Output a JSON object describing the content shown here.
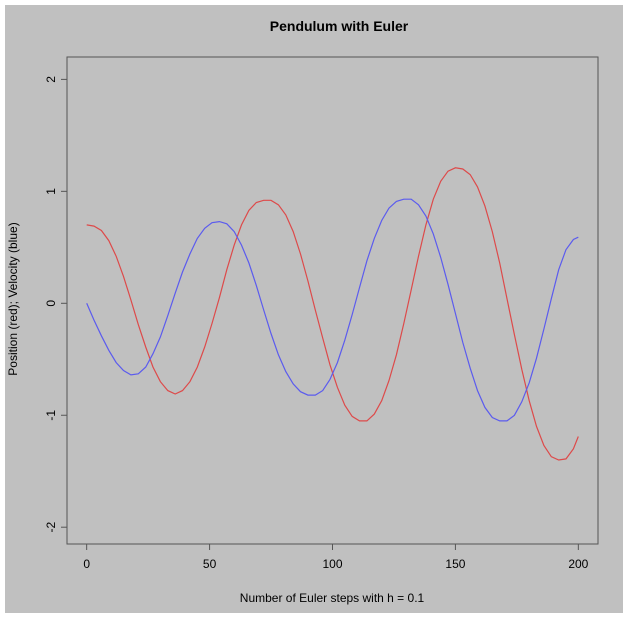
{
  "chart_data": {
    "type": "line",
    "title": "Pendulum with Euler",
    "xlabel": "Number of Euler steps with h = 0.1",
    "ylabel": "Position (red); Velocity (blue)",
    "xlim": [
      -8,
      208
    ],
    "ylim": [
      -2.15,
      2.2
    ],
    "x_ticks": [
      0,
      50,
      100,
      150,
      200
    ],
    "x_tick_labels": [
      "0",
      "50",
      "100",
      "150",
      "200"
    ],
    "y_ticks": [
      -2,
      -1,
      0,
      1,
      2
    ],
    "y_tick_labels": [
      "-2",
      "-1",
      "0",
      "1",
      "2"
    ],
    "grid": false,
    "legend": "none",
    "background_color": "#c0c0c0",
    "series": [
      {
        "color": "#dd4a4a",
        "points": [
          [
            0,
            0.7
          ],
          [
            3,
            0.69
          ],
          [
            6,
            0.65
          ],
          [
            9,
            0.56
          ],
          [
            12,
            0.42
          ],
          [
            15,
            0.24
          ],
          [
            18,
            0.03
          ],
          [
            21,
            -0.19
          ],
          [
            24,
            -0.39
          ],
          [
            27,
            -0.57
          ],
          [
            30,
            -0.7
          ],
          [
            33,
            -0.78
          ],
          [
            36,
            -0.81
          ],
          [
            39,
            -0.78
          ],
          [
            42,
            -0.7
          ],
          [
            45,
            -0.57
          ],
          [
            48,
            -0.39
          ],
          [
            51,
            -0.18
          ],
          [
            54,
            0.05
          ],
          [
            57,
            0.3
          ],
          [
            60,
            0.52
          ],
          [
            63,
            0.7
          ],
          [
            66,
            0.83
          ],
          [
            69,
            0.9
          ],
          [
            72,
            0.92
          ],
          [
            75,
            0.92
          ],
          [
            78,
            0.88
          ],
          [
            81,
            0.79
          ],
          [
            84,
            0.64
          ],
          [
            87,
            0.44
          ],
          [
            90,
            0.2
          ],
          [
            93,
            -0.06
          ],
          [
            96,
            -0.31
          ],
          [
            99,
            -0.55
          ],
          [
            102,
            -0.75
          ],
          [
            105,
            -0.91
          ],
          [
            108,
            -1.01
          ],
          [
            111,
            -1.05
          ],
          [
            114,
            -1.05
          ],
          [
            117,
            -0.99
          ],
          [
            120,
            -0.87
          ],
          [
            123,
            -0.69
          ],
          [
            126,
            -0.46
          ],
          [
            129,
            -0.18
          ],
          [
            132,
            0.12
          ],
          [
            135,
            0.42
          ],
          [
            138,
            0.7
          ],
          [
            141,
            0.93
          ],
          [
            144,
            1.09
          ],
          [
            147,
            1.18
          ],
          [
            150,
            1.21
          ],
          [
            153,
            1.2
          ],
          [
            156,
            1.15
          ],
          [
            159,
            1.04
          ],
          [
            162,
            0.87
          ],
          [
            165,
            0.64
          ],
          [
            168,
            0.36
          ],
          [
            171,
            0.04
          ],
          [
            174,
            -0.28
          ],
          [
            177,
            -0.59
          ],
          [
            180,
            -0.87
          ],
          [
            183,
            -1.1
          ],
          [
            186,
            -1.27
          ],
          [
            189,
            -1.37
          ],
          [
            192,
            -1.4
          ],
          [
            195,
            -1.39
          ],
          [
            198,
            -1.3
          ],
          [
            200,
            -1.19
          ]
        ]
      },
      {
        "color": "#5b5bee",
        "points": [
          [
            0,
            0.0
          ],
          [
            3,
            -0.15
          ],
          [
            6,
            -0.29
          ],
          [
            9,
            -0.42
          ],
          [
            12,
            -0.53
          ],
          [
            15,
            -0.6
          ],
          [
            18,
            -0.64
          ],
          [
            21,
            -0.63
          ],
          [
            24,
            -0.57
          ],
          [
            27,
            -0.45
          ],
          [
            30,
            -0.3
          ],
          [
            33,
            -0.11
          ],
          [
            36,
            0.09
          ],
          [
            39,
            0.28
          ],
          [
            42,
            0.44
          ],
          [
            45,
            0.58
          ],
          [
            48,
            0.67
          ],
          [
            51,
            0.72
          ],
          [
            54,
            0.73
          ],
          [
            57,
            0.71
          ],
          [
            60,
            0.64
          ],
          [
            63,
            0.52
          ],
          [
            66,
            0.36
          ],
          [
            69,
            0.16
          ],
          [
            72,
            -0.06
          ],
          [
            75,
            -0.27
          ],
          [
            78,
            -0.46
          ],
          [
            81,
            -0.61
          ],
          [
            84,
            -0.72
          ],
          [
            87,
            -0.79
          ],
          [
            90,
            -0.82
          ],
          [
            93,
            -0.82
          ],
          [
            96,
            -0.78
          ],
          [
            99,
            -0.68
          ],
          [
            102,
            -0.53
          ],
          [
            105,
            -0.33
          ],
          [
            108,
            -0.1
          ],
          [
            111,
            0.14
          ],
          [
            114,
            0.38
          ],
          [
            117,
            0.58
          ],
          [
            120,
            0.74
          ],
          [
            123,
            0.85
          ],
          [
            126,
            0.91
          ],
          [
            129,
            0.93
          ],
          [
            132,
            0.93
          ],
          [
            135,
            0.88
          ],
          [
            138,
            0.78
          ],
          [
            141,
            0.62
          ],
          [
            144,
            0.41
          ],
          [
            147,
            0.17
          ],
          [
            150,
            -0.09
          ],
          [
            153,
            -0.35
          ],
          [
            156,
            -0.58
          ],
          [
            159,
            -0.78
          ],
          [
            162,
            -0.93
          ],
          [
            165,
            -1.02
          ],
          [
            168,
            -1.05
          ],
          [
            171,
            -1.05
          ],
          [
            174,
            -1.0
          ],
          [
            177,
            -0.88
          ],
          [
            180,
            -0.71
          ],
          [
            183,
            -0.49
          ],
          [
            186,
            -0.23
          ],
          [
            189,
            0.04
          ],
          [
            192,
            0.3
          ],
          [
            195,
            0.48
          ],
          [
            198,
            0.57
          ],
          [
            200,
            0.59
          ]
        ]
      }
    ]
  }
}
